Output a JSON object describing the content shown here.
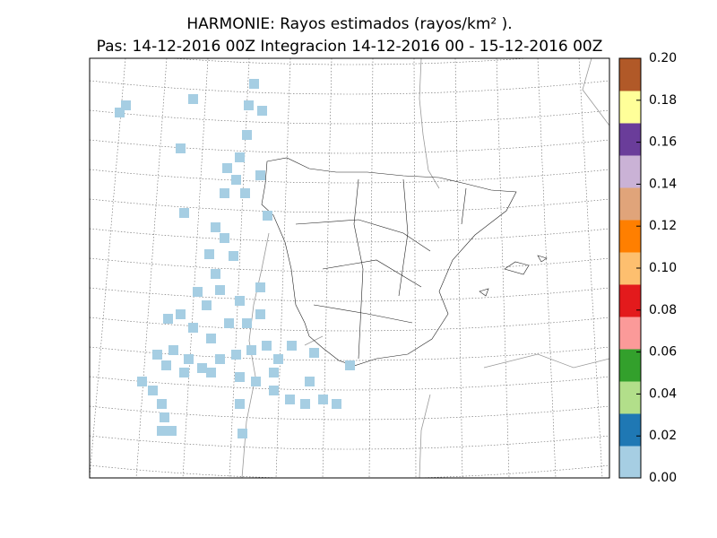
{
  "title": "HARMONIE: Rayos estimados  (rayos/km² ).",
  "subtitle": "Pas: 14-12-2016 00Z Integracion 14-12-2016 00 - 15-12-2016 00Z",
  "colorbar": {
    "range": [
      0,
      0.2
    ],
    "ticks": [
      {
        "value": 0,
        "label": "0.00"
      },
      {
        "value": 0.02,
        "label": "0.02"
      },
      {
        "value": 0.04,
        "label": "0.04"
      },
      {
        "value": 0.06,
        "label": "0.06"
      },
      {
        "value": 0.08,
        "label": "0.08"
      },
      {
        "value": 0.1,
        "label": "0.10"
      },
      {
        "value": 0.12,
        "label": "0.12"
      },
      {
        "value": 0.14,
        "label": "0.14"
      },
      {
        "value": 0.16,
        "label": "0.16"
      },
      {
        "value": 0.18,
        "label": "0.18"
      },
      {
        "value": 0.2,
        "label": "0.20"
      }
    ],
    "colors": [
      "#a6cee3",
      "#1f78b4",
      "#b2df8a",
      "#33a02c",
      "#fb9a99",
      "#e31a1c",
      "#fdbf6f",
      "#ff7f00",
      "#e0a47a",
      "#cab2d6",
      "#6a3d9a",
      "#ffff99",
      "#b15928"
    ]
  }
}
